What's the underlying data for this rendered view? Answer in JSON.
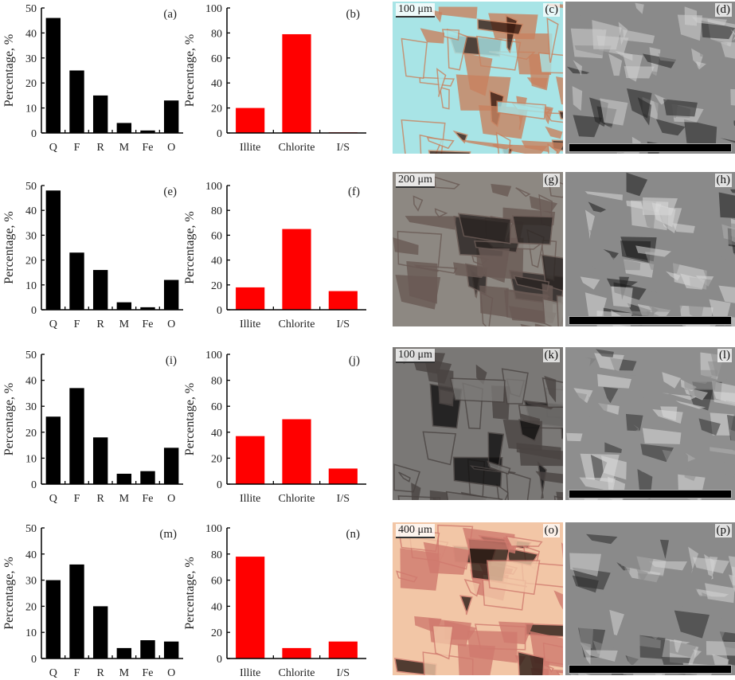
{
  "colors": {
    "mineral_bars": "#000000",
    "clay_bars": "#ff0000"
  },
  "chart_data": [
    {
      "type": "bar",
      "panel": "(a)",
      "categories": [
        "Q",
        "F",
        "R",
        "M",
        "Fe",
        "O"
      ],
      "values": [
        46,
        25,
        15,
        4,
        1,
        13
      ],
      "ylabel": "Percentage, %",
      "ylim": [
        0,
        50
      ],
      "yticks": [
        0,
        10,
        20,
        30,
        40,
        50
      ],
      "color": "#000000"
    },
    {
      "type": "bar",
      "panel": "(b)",
      "categories": [
        "Illite",
        "Chlorite",
        "I/S"
      ],
      "values": [
        20,
        79,
        0.5
      ],
      "ylabel": "Percentage, %",
      "ylim": [
        0,
        100
      ],
      "yticks": [
        0,
        20,
        40,
        60,
        80,
        100
      ],
      "color": "#ff0000"
    },
    {
      "type": "bar",
      "panel": "(e)",
      "categories": [
        "Q",
        "F",
        "R",
        "M",
        "Fe",
        "O"
      ],
      "values": [
        48,
        23,
        16,
        3,
        1,
        12
      ],
      "ylabel": "Percentage, %",
      "ylim": [
        0,
        50
      ],
      "yticks": [
        0,
        10,
        20,
        30,
        40,
        50
      ],
      "color": "#000000"
    },
    {
      "type": "bar",
      "panel": "(f)",
      "categories": [
        "Illite",
        "Chlorite",
        "I/S"
      ],
      "values": [
        18,
        65,
        15
      ],
      "ylabel": "Percentage, %",
      "ylim": [
        0,
        100
      ],
      "yticks": [
        0,
        20,
        40,
        60,
        80,
        100
      ],
      "color": "#ff0000"
    },
    {
      "type": "bar",
      "panel": "(i)",
      "categories": [
        "Q",
        "F",
        "R",
        "M",
        "Fe",
        "O"
      ],
      "values": [
        26,
        37,
        18,
        4,
        5,
        14
      ],
      "ylabel": "Percentage, %",
      "ylim": [
        0,
        50
      ],
      "yticks": [
        0,
        10,
        20,
        30,
        40,
        50
      ],
      "color": "#000000"
    },
    {
      "type": "bar",
      "panel": "(j)",
      "categories": [
        "Illite",
        "Chlorite",
        "I/S"
      ],
      "values": [
        37,
        50,
        12
      ],
      "ylabel": "Percentage, %",
      "ylim": [
        0,
        100
      ],
      "yticks": [
        0,
        20,
        40,
        60,
        80,
        100
      ],
      "color": "#ff0000"
    },
    {
      "type": "bar",
      "panel": "(m)",
      "categories": [
        "Q",
        "F",
        "R",
        "M",
        "Fe",
        "O"
      ],
      "values": [
        30,
        36,
        20,
        4,
        7,
        6.5
      ],
      "ylabel": "Percentage, %",
      "ylim": [
        0,
        50
      ],
      "yticks": [
        0,
        10,
        20,
        30,
        40,
        50
      ],
      "color": "#000000"
    },
    {
      "type": "bar",
      "panel": "(n)",
      "categories": [
        "Illite",
        "Chlorite",
        "I/S"
      ],
      "values": [
        78,
        8,
        13
      ],
      "ylabel": "Percentage, %",
      "ylim": [
        0,
        100
      ],
      "yticks": [
        0,
        20,
        40,
        60,
        80,
        100
      ],
      "color": "#ff0000"
    }
  ],
  "images": [
    {
      "panel": "(c)",
      "scale": "100 μm",
      "kind": "thin-section",
      "tones": [
        "#a8e4e6",
        "#c9825f",
        "#3a1a10"
      ]
    },
    {
      "panel": "(d)",
      "kind": "sem",
      "tones": [
        "#8a8a8a",
        "#d0d0d0",
        "#202020"
      ]
    },
    {
      "panel": "(g)",
      "scale": "200 μm",
      "kind": "thin-section",
      "tones": [
        "#8d8882",
        "#6a5a55",
        "#2a2422"
      ]
    },
    {
      "panel": "(h)",
      "kind": "sem",
      "tones": [
        "#8a8a8a",
        "#d8d8d8",
        "#1a1a1a"
      ]
    },
    {
      "panel": "(k)",
      "scale": "100 μm",
      "kind": "thin-section",
      "tones": [
        "#7a7876",
        "#4a4442",
        "#111010"
      ]
    },
    {
      "panel": "(l)",
      "kind": "sem",
      "tones": [
        "#8e8e8e",
        "#dadada",
        "#303030"
      ]
    },
    {
      "panel": "(o)",
      "scale": "400 μm",
      "kind": "thin-section",
      "tones": [
        "#f2c6a6",
        "#d07a6e",
        "#2a1a14"
      ]
    },
    {
      "panel": "(p)",
      "kind": "sem",
      "tones": [
        "#8a8a8a",
        "#d4d4d4",
        "#2a2a2a"
      ]
    }
  ]
}
